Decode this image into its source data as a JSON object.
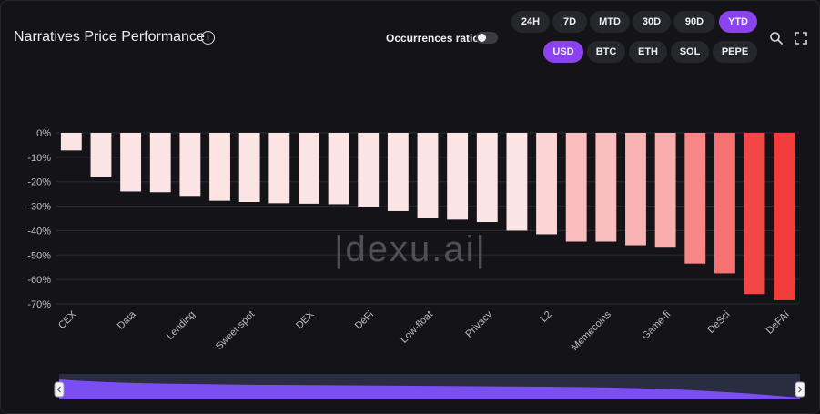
{
  "header": {
    "title": "Narratives Price Performance",
    "occurrences_label": "Occurrences ratio",
    "occurrences_on": false
  },
  "timeframes": [
    {
      "label": "24H",
      "active": false
    },
    {
      "label": "7D",
      "active": false
    },
    {
      "label": "MTD",
      "active": false
    },
    {
      "label": "30D",
      "active": false
    },
    {
      "label": "90D",
      "active": false
    },
    {
      "label": "YTD",
      "active": true
    }
  ],
  "currencies": [
    {
      "label": "USD",
      "active": true
    },
    {
      "label": "BTC",
      "active": false
    },
    {
      "label": "ETH",
      "active": false
    },
    {
      "label": "SOL",
      "active": false
    },
    {
      "label": "PEPE",
      "active": false
    }
  ],
  "tools": {
    "search_icon": "search-icon",
    "expand_icon": "fullscreen-icon"
  },
  "watermark": "|dexu.ai|",
  "colors": {
    "accent": "#8b43f0",
    "light_bar": "#fde4e4",
    "dark_bar": "#f23b3b"
  },
  "chart_data": {
    "type": "bar",
    "title": "",
    "xlabel": "",
    "ylabel": "",
    "ylim": [
      -70,
      0
    ],
    "yticks": [
      "0%",
      "-10%",
      "-20%",
      "-30%",
      "-40%",
      "-50%",
      "-60%",
      "-70%"
    ],
    "grid": true,
    "categories": [
      "CEX",
      "",
      "Data",
      "",
      "Lending",
      "",
      "Sweet-spot",
      "",
      "DEX",
      "",
      "DeFi",
      "",
      "Low-float",
      "",
      "Privacy",
      "",
      "L2",
      "",
      "Memecoins",
      "",
      "Game-fi",
      "",
      "DeSci",
      "",
      "DeFAI"
    ],
    "values": [
      -7.2,
      -18.0,
      -24.0,
      -24.3,
      -25.8,
      -27.8,
      -28.3,
      -28.8,
      -29.0,
      -29.2,
      -30.5,
      -32.0,
      -35.0,
      -35.5,
      -36.5,
      -40.0,
      -41.5,
      -44.5,
      -44.5,
      -46.0,
      -47.0,
      -53.5,
      -57.5,
      -66.0,
      -68.5
    ],
    "value_unit": "%",
    "bar_color_scale": "darker red for larger decline"
  }
}
